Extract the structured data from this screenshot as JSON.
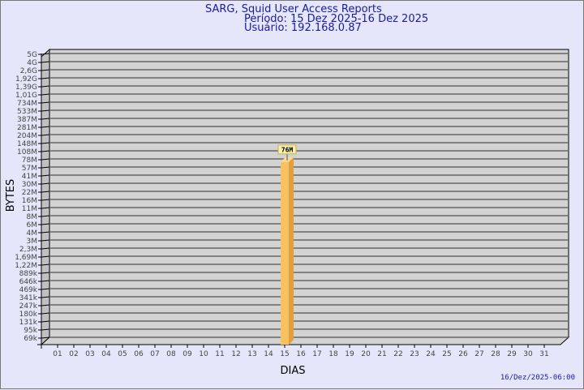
{
  "header": {
    "title": "SARG, Squid User Access Reports",
    "period": "Período: 15 Dez 2025-16 Dez 2025",
    "user": "Usuário: 192.168.0.87"
  },
  "footer": {
    "timestamp": "16/Dez/2025-06:00"
  },
  "chart_data": {
    "type": "bar",
    "xlabel": "DIAS",
    "ylabel": "BYTES",
    "y_scale": "log",
    "grid": true,
    "y_ticks": [
      "5G",
      "4G",
      "2,6G",
      "1,92G",
      "1,39G",
      "1,01G",
      "734M",
      "533M",
      "387M",
      "281M",
      "204M",
      "148M",
      "108M",
      "78M",
      "57M",
      "41M",
      "30M",
      "22M",
      "16M",
      "11M",
      "8M",
      "6M",
      "4M",
      "3M",
      "2,3M",
      "1,69M",
      "1,22M",
      "889k",
      "646k",
      "469k",
      "341k",
      "247k",
      "180k",
      "131k",
      "95k",
      "69k"
    ],
    "categories": [
      "01",
      "02",
      "03",
      "04",
      "05",
      "06",
      "07",
      "08",
      "09",
      "10",
      "11",
      "12",
      "13",
      "14",
      "15",
      "16",
      "17",
      "18",
      "19",
      "20",
      "21",
      "22",
      "23",
      "24",
      "25",
      "26",
      "27",
      "28",
      "29",
      "30",
      "31"
    ],
    "series": [
      {
        "points": [
          {
            "x": "15",
            "value": 76000000,
            "label": "76M"
          }
        ]
      }
    ],
    "colors": {
      "bar": "#f9c060",
      "bar_side": "#e0a040",
      "wall": "#d3d3d3",
      "text": "#1a1aa0"
    }
  }
}
